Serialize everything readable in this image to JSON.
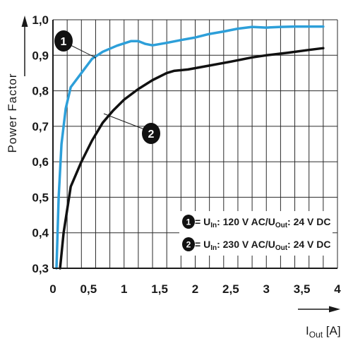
{
  "chart_data": {
    "type": "line",
    "ylabel": "Power Factor",
    "xlabel": {
      "base": "I",
      "sub": "Out",
      "unit": " [A]"
    },
    "x_ticks": [
      "0",
      "0,5",
      "1",
      "1,5",
      "2",
      "2,5",
      "3",
      "3,5",
      "4"
    ],
    "y_ticks": [
      "0,3",
      "0,4",
      "0,5",
      "0,6",
      "0,7",
      "0,8",
      "0,9",
      "1,0"
    ],
    "xlim": [
      0,
      4
    ],
    "ylim": [
      0.3,
      1.0
    ],
    "grid": true,
    "legend_position": "bottom-right",
    "series": [
      {
        "id": "1",
        "color": "#2d9fd9",
        "legend": {
          "u_in_prefix": " = U",
          "u_in_sub": "In",
          "u_in_val": ": 120 V AC/U",
          "u_out_sub": "Out",
          "u_out_val": ": 24 V DC"
        },
        "x": [
          0.05,
          0.08,
          0.12,
          0.18,
          0.25,
          0.4,
          0.55,
          0.7,
          0.9,
          1.1,
          1.2,
          1.3,
          1.4,
          1.6,
          1.8,
          2.0,
          2.2,
          2.4,
          2.6,
          2.8,
          3.0,
          3.2,
          3.4,
          3.6,
          3.8
        ],
        "y": [
          0.3,
          0.5,
          0.65,
          0.75,
          0.81,
          0.85,
          0.89,
          0.91,
          0.927,
          0.94,
          0.94,
          0.932,
          0.928,
          0.935,
          0.943,
          0.95,
          0.96,
          0.967,
          0.975,
          0.98,
          0.978,
          0.98,
          0.981,
          0.981,
          0.981
        ]
      },
      {
        "id": "2",
        "color": "#111111",
        "legend": {
          "u_in_prefix": " = U",
          "u_in_sub": "In",
          "u_in_val": ": 230 V AC/U",
          "u_out_sub": "Out",
          "u_out_val": ": 24 V DC"
        },
        "x": [
          0.1,
          0.15,
          0.25,
          0.4,
          0.55,
          0.7,
          0.85,
          1.0,
          1.2,
          1.4,
          1.6,
          1.7,
          1.9,
          2.2,
          2.5,
          2.8,
          3.0,
          3.3,
          3.6,
          3.8
        ],
        "y": [
          0.3,
          0.4,
          0.53,
          0.6,
          0.66,
          0.71,
          0.745,
          0.775,
          0.805,
          0.83,
          0.85,
          0.856,
          0.86,
          0.871,
          0.882,
          0.894,
          0.9,
          0.907,
          0.915,
          0.92
        ]
      }
    ],
    "markers": [
      {
        "label": "1"
      },
      {
        "label": "2"
      }
    ]
  }
}
